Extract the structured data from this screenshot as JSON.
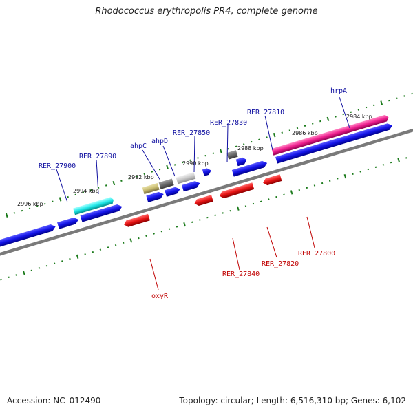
{
  "title": "Rhodococcus erythropolis PR4, complete genome",
  "footer": {
    "accession": "Accession: NC_012490",
    "topology": "Topology: circular; Length: 6,516,310 bp; Genes: 6,102"
  },
  "scale_labels": [
    "2984 kbp",
    "2986 kbp",
    "2988 kbp",
    "2990 kbp",
    "2992 kbp",
    "2994 kbp",
    "2996 kbp"
  ],
  "gene_labels_top": [
    "hrpA",
    "RER_27810",
    "RER_27830",
    "RER_27850",
    "ahpD",
    "ahpC",
    "RER_27890",
    "RER_27900"
  ],
  "gene_labels_bottom": [
    "RER_27800",
    "RER_27820",
    "RER_27840",
    "oxyR"
  ],
  "colors": {
    "forward": "#1010e0",
    "reverse": "#e01010",
    "backbone": "#777777",
    "ticks": "#1a7a1a",
    "label_blue": "#1010a0",
    "label_red": "#c00000"
  }
}
